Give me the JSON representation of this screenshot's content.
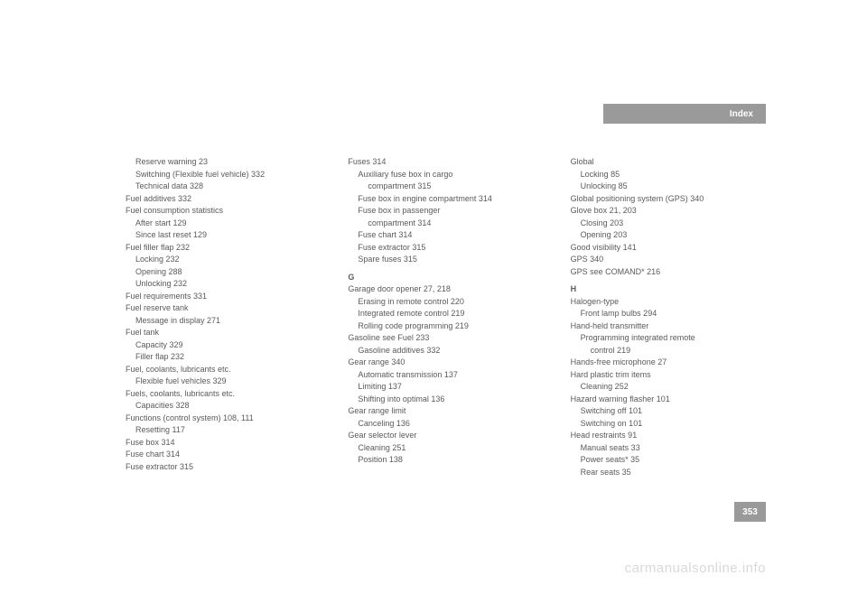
{
  "header": {
    "label": "Index"
  },
  "pageNumber": "353",
  "watermark": "carmanualsonline.info",
  "columns": {
    "col1": [
      {
        "text": "Reserve warning    23",
        "indent": 1
      },
      {
        "text": "Switching (Flexible fuel vehicle)    332",
        "indent": 1
      },
      {
        "text": "Technical data    328",
        "indent": 1
      },
      {
        "text": "Fuel additives    332",
        "indent": 0
      },
      {
        "text": "Fuel consumption statistics",
        "indent": 0
      },
      {
        "text": "After start    129",
        "indent": 1
      },
      {
        "text": "Since last reset    129",
        "indent": 1
      },
      {
        "text": "Fuel filler flap    232",
        "indent": 0
      },
      {
        "text": "Locking    232",
        "indent": 1
      },
      {
        "text": "Opening    288",
        "indent": 1
      },
      {
        "text": "Unlocking    232",
        "indent": 1
      },
      {
        "text": "Fuel requirements    331",
        "indent": 0
      },
      {
        "text": "Fuel reserve tank",
        "indent": 0
      },
      {
        "text": "Message in display    271",
        "indent": 1
      },
      {
        "text": "Fuel tank",
        "indent": 0
      },
      {
        "text": "Capacity    329",
        "indent": 1
      },
      {
        "text": "Filler flap    232",
        "indent": 1
      },
      {
        "text": "Fuel, coolants, lubricants etc.",
        "indent": 0
      },
      {
        "text": "Flexible fuel vehicles    329",
        "indent": 1
      },
      {
        "text": "Fuels, coolants, lubricants etc.",
        "indent": 0
      },
      {
        "text": "Capacities    328",
        "indent": 1
      },
      {
        "text": "Functions (control system)    108, 111",
        "indent": 0
      },
      {
        "text": "Resetting    117",
        "indent": 1
      },
      {
        "text": "Fuse box    314",
        "indent": 0
      },
      {
        "text": "Fuse chart    314",
        "indent": 0
      },
      {
        "text": "Fuse extractor    315",
        "indent": 0
      }
    ],
    "col2": [
      {
        "text": "Fuses    314",
        "indent": 0
      },
      {
        "text": "Auxiliary fuse box in cargo",
        "indent": 1
      },
      {
        "text": "compartment    315",
        "indent": 2
      },
      {
        "text": "Fuse box in engine compartment    314",
        "indent": 1
      },
      {
        "text": "Fuse box in passenger",
        "indent": 1
      },
      {
        "text": "compartment    314",
        "indent": 2
      },
      {
        "text": "Fuse chart    314",
        "indent": 1
      },
      {
        "text": "Fuse extractor    315",
        "indent": 1
      },
      {
        "text": "Spare fuses    315",
        "indent": 1
      },
      {
        "text": "G",
        "indent": 0,
        "section": true
      },
      {
        "text": "Garage door opener    27, 218",
        "indent": 0
      },
      {
        "text": "Erasing in remote control    220",
        "indent": 1
      },
      {
        "text": "Integrated remote control    219",
        "indent": 1
      },
      {
        "text": "Rolling code programming    219",
        "indent": 1
      },
      {
        "text": "Gasoline see Fuel    233",
        "indent": 0
      },
      {
        "text": "Gasoline additives    332",
        "indent": 1
      },
      {
        "text": "Gear range    340",
        "indent": 0
      },
      {
        "text": "Automatic transmission    137",
        "indent": 1
      },
      {
        "text": "Limiting    137",
        "indent": 1
      },
      {
        "text": "Shifting into optimal    136",
        "indent": 1
      },
      {
        "text": "Gear range limit",
        "indent": 0
      },
      {
        "text": "Canceling    136",
        "indent": 1
      },
      {
        "text": "Gear selector lever",
        "indent": 0
      },
      {
        "text": "Cleaning    251",
        "indent": 1
      },
      {
        "text": "Position    138",
        "indent": 1
      }
    ],
    "col3": [
      {
        "text": "Global",
        "indent": 0
      },
      {
        "text": "Locking    85",
        "indent": 1
      },
      {
        "text": "Unlocking    85",
        "indent": 1
      },
      {
        "text": "Global positioning system (GPS)    340",
        "indent": 0
      },
      {
        "text": "Glove box    21, 203",
        "indent": 0
      },
      {
        "text": "Closing    203",
        "indent": 1
      },
      {
        "text": "Opening    203",
        "indent": 1
      },
      {
        "text": "Good visibility    141",
        "indent": 0
      },
      {
        "text": "GPS    340",
        "indent": 0
      },
      {
        "text": "GPS see COMAND*    216",
        "indent": 0
      },
      {
        "text": "H",
        "indent": 0,
        "section": true
      },
      {
        "text": "Halogen-type",
        "indent": 0
      },
      {
        "text": "Front lamp bulbs    294",
        "indent": 1
      },
      {
        "text": "Hand-held transmitter",
        "indent": 0
      },
      {
        "text": "Programming integrated remote",
        "indent": 1
      },
      {
        "text": "control    219",
        "indent": 2
      },
      {
        "text": "Hands-free microphone    27",
        "indent": 0
      },
      {
        "text": "Hard plastic trim items",
        "indent": 0
      },
      {
        "text": "Cleaning    252",
        "indent": 1
      },
      {
        "text": "Hazard warning flasher    101",
        "indent": 0
      },
      {
        "text": "Switching off    101",
        "indent": 1
      },
      {
        "text": "Switching on    101",
        "indent": 1
      },
      {
        "text": "Head restraints    91",
        "indent": 0
      },
      {
        "text": "Manual seats    33",
        "indent": 1
      },
      {
        "text": "Power seats*    35",
        "indent": 1
      },
      {
        "text": "Rear seats    35",
        "indent": 1
      }
    ]
  }
}
